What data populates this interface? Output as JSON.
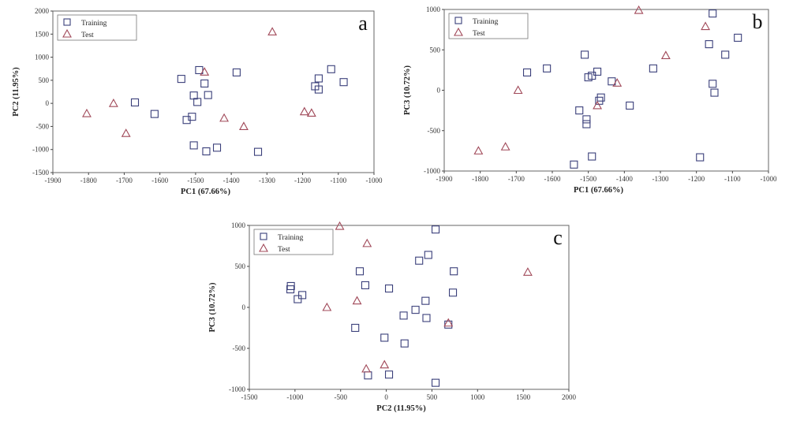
{
  "colors": {
    "training": "#3a3f7a",
    "test": "#a04858",
    "axis": "#444444",
    "frame": "#666666"
  },
  "legend": {
    "training": "Training",
    "test": "Test",
    "placement": "top-left"
  },
  "chart_data": [
    {
      "type": "scatter",
      "panel_label": "a",
      "xlabel": "PC1 (67.66%)",
      "ylabel": "PC2 (11.95%)",
      "xlim": [
        -1900,
        -1000
      ],
      "ylim": [
        -1500,
        2000
      ],
      "xticks": [
        -1900,
        -1800,
        -1700,
        -1600,
        -1500,
        -1400,
        -1300,
        -1200,
        -1100,
        -1000
      ],
      "yticks": [
        -1500,
        -1000,
        -500,
        0,
        500,
        1000,
        1500,
        2000
      ],
      "series": [
        {
          "name": "Training",
          "marker": "square",
          "x": [
            -1670,
            -1615,
            -1540,
            -1525,
            -1510,
            -1505,
            -1505,
            -1495,
            -1490,
            -1475,
            -1470,
            -1465,
            -1440,
            -1385,
            -1325,
            -1165,
            -1155,
            -1155,
            -1120,
            -1085
          ],
          "y": [
            20,
            -230,
            530,
            -360,
            -290,
            170,
            -910,
            30,
            720,
            430,
            -1040,
            180,
            -960,
            670,
            -1050,
            370,
            540,
            300,
            740,
            460
          ]
        },
        {
          "name": "Test",
          "marker": "triangle",
          "x": [
            -1805,
            -1730,
            -1695,
            -1475,
            -1420,
            -1365,
            -1285,
            -1195,
            -1175
          ],
          "y": [
            -220,
            0,
            -650,
            680,
            -320,
            -500,
            1550,
            -180,
            -210
          ]
        }
      ]
    },
    {
      "type": "scatter",
      "panel_label": "b",
      "xlabel": "PC1 (67.66%)",
      "ylabel": "PC3 (10.72%)",
      "xlim": [
        -1900,
        -1000
      ],
      "ylim": [
        -1000,
        1000
      ],
      "xticks": [
        -1900,
        -1800,
        -1700,
        -1600,
        -1500,
        -1400,
        -1300,
        -1200,
        -1100,
        -1000
      ],
      "yticks": [
        -1000,
        -500,
        0,
        500,
        1000
      ],
      "series": [
        {
          "name": "Training",
          "marker": "square",
          "x": [
            -1670,
            -1615,
            -1540,
            -1525,
            -1510,
            -1505,
            -1505,
            -1500,
            -1490,
            -1490,
            -1475,
            -1470,
            -1465,
            -1435,
            -1385,
            -1320,
            -1190,
            -1165,
            -1155,
            -1155,
            -1150,
            -1120,
            -1085
          ],
          "y": [
            220,
            270,
            -920,
            -250,
            440,
            -360,
            -420,
            160,
            -820,
            180,
            230,
            -130,
            -90,
            110,
            -190,
            270,
            -830,
            570,
            950,
            80,
            -30,
            440,
            650
          ]
        },
        {
          "name": "Test",
          "marker": "triangle",
          "x": [
            -1805,
            -1730,
            -1695,
            -1475,
            -1420,
            -1360,
            -1285,
            -1175
          ],
          "y": [
            -750,
            -700,
            0,
            -190,
            90,
            990,
            430,
            790
          ]
        }
      ]
    },
    {
      "type": "scatter",
      "panel_label": "c",
      "xlabel": "PC2 (11.95%)",
      "ylabel": "PC3 (10.72%)",
      "xlim": [
        -1500,
        2000
      ],
      "ylim": [
        -1000,
        1000
      ],
      "xticks": [
        -1500,
        -1000,
        -500,
        0,
        500,
        1000,
        1500,
        2000
      ],
      "yticks": [
        -1000,
        -500,
        0,
        500,
        1000
      ],
      "series": [
        {
          "name": "Training",
          "marker": "square",
          "x": [
            -1050,
            -1045,
            -970,
            -920,
            -340,
            -290,
            -230,
            -200,
            -20,
            30,
            30,
            190,
            200,
            320,
            360,
            430,
            440,
            460,
            540,
            540,
            680,
            730,
            740
          ],
          "y": [
            220,
            260,
            100,
            150,
            -250,
            440,
            270,
            -830,
            -370,
            230,
            -820,
            -100,
            -440,
            -30,
            570,
            80,
            -130,
            640,
            950,
            -920,
            -210,
            180,
            440
          ]
        },
        {
          "name": "Test",
          "marker": "triangle",
          "x": [
            -510,
            -650,
            -320,
            -210,
            -220,
            -20,
            680,
            1550
          ],
          "y": [
            990,
            0,
            80,
            780,
            -750,
            -700,
            -190,
            430
          ]
        }
      ]
    }
  ]
}
